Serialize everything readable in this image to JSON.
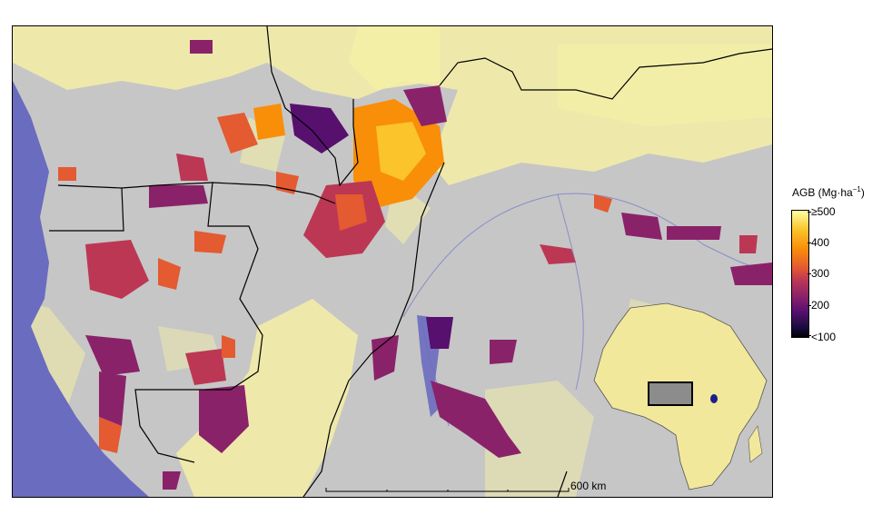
{
  "legend": {
    "title_main": "AGB (Mg·ha",
    "title_sup": "−1",
    "title_close": ")",
    "ticks": [
      "≥500",
      "400",
      "300",
      "200",
      "<100"
    ]
  },
  "scale_bar": {
    "label": "600 km"
  },
  "colors": {
    "land_low": "#c6c6c6",
    "savanna": "#f4efa6",
    "ocean": "#6a6cbf",
    "border": "#000000",
    "inset_africa": "#f1e89c"
  }
}
